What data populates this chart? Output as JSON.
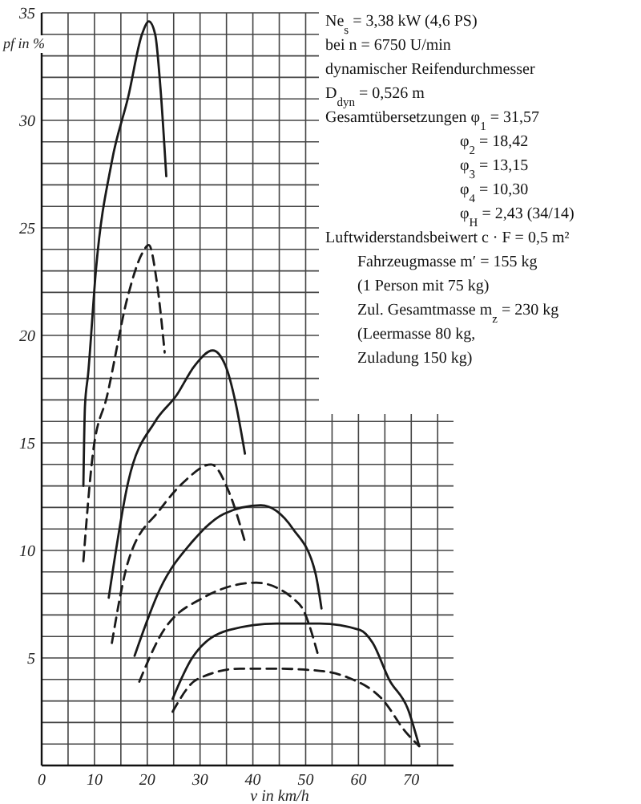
{
  "chart_data": {
    "type": "line",
    "xlabel": "v in km/h",
    "ylabel": "pf in %",
    "xlim": [
      0,
      78
    ],
    "ylim": [
      0,
      35
    ],
    "xticks": [
      0,
      {
        "value": 5,
        "label": null
      },
      10,
      {
        "value": 15,
        "label": null
      },
      20,
      {
        "value": 25,
        "label": null
      },
      30,
      {
        "value": 35,
        "label": null
      },
      40,
      {
        "value": 45,
        "label": null
      },
      50,
      {
        "value": 55,
        "label": null
      },
      60,
      {
        "value": 65,
        "label": null
      },
      70,
      {
        "value": 75,
        "label": null
      }
    ],
    "yticks": [
      {
        "value": 1,
        "label": null
      },
      {
        "value": 2,
        "label": null
      },
      {
        "value": 3,
        "label": null
      },
      {
        "value": 4,
        "label": null
      },
      5,
      {
        "value": 6,
        "label": null
      },
      {
        "value": 7,
        "label": null
      },
      {
        "value": 8,
        "label": null
      },
      {
        "value": 9,
        "label": null
      },
      10,
      {
        "value": 11,
        "label": null
      },
      {
        "value": 12,
        "label": null
      },
      {
        "value": 13,
        "label": null
      },
      {
        "value": 14,
        "label": null
      },
      15,
      {
        "value": 16,
        "label": null
      },
      {
        "value": 17,
        "label": null
      },
      {
        "value": 18,
        "label": null
      },
      {
        "value": 19,
        "label": null
      },
      20,
      {
        "value": 21,
        "label": null
      },
      {
        "value": 22,
        "label": null
      },
      {
        "value": 23,
        "label": null
      },
      {
        "value": 24,
        "label": null
      },
      25,
      {
        "value": 26,
        "label": null
      },
      {
        "value": 27,
        "label": null
      },
      {
        "value": 28,
        "label": null
      },
      {
        "value": 29,
        "label": null
      },
      30,
      {
        "value": 31,
        "label": null
      },
      {
        "value": 32,
        "label": null
      },
      {
        "value": 33,
        "label": null
      },
      {
        "value": 34,
        "label": null
      },
      35
    ],
    "grid": true,
    "marker": "none",
    "series": [
      {
        "color": "#1a1a1a",
        "line_style": "solid",
        "x": [
          7.9,
          8.2,
          8.8,
          10.3,
          13.3,
          16.4,
          19,
          20.3,
          21.5,
          22.5,
          23.6
        ],
        "values": [
          13.0,
          16.7,
          18.2,
          23.1,
          28.1,
          31.1,
          34,
          34.6,
          34,
          31.5,
          27.4
        ]
      },
      {
        "color": "#1a1a1a",
        "line_style": "dashed",
        "x": [
          7.9,
          9.7,
          12.4,
          16.4,
          19,
          20.3,
          21.8,
          23.3
        ],
        "values": [
          9.5,
          14.5,
          17.2,
          21.9,
          23.8,
          24.2,
          22.5,
          19.2
        ]
      },
      {
        "color": "#1a1a1a",
        "line_style": "solid",
        "x": [
          12.7,
          16.4,
          21.5,
          25.5,
          29,
          32.4,
          34.8,
          36.7,
          38.5
        ],
        "values": [
          7.8,
          13.2,
          16.0,
          17.2,
          18.6,
          19.3,
          18.6,
          16.9,
          14.5
        ]
      },
      {
        "color": "#1a1a1a",
        "line_style": "dashed",
        "x": [
          13.3,
          16.4,
          22.4,
          27,
          32.1,
          35.5,
          38.5
        ],
        "values": [
          5.7,
          9.5,
          11.9,
          13.2,
          14.0,
          12.7,
          10.4
        ]
      },
      {
        "color": "#1a1a1a",
        "line_style": "solid",
        "x": [
          17.6,
          22.4,
          28.5,
          34.5,
          41.5,
          47.6,
          51.8,
          53
        ],
        "values": [
          5.1,
          8.2,
          10.4,
          11.7,
          12.1,
          11.0,
          9.0,
          7.3
        ]
      },
      {
        "color": "#1a1a1a",
        "line_style": "dashed",
        "x": [
          18.5,
          22.4,
          30.6,
          40.6,
          48.8,
          52.5
        ],
        "values": [
          3.9,
          6.0,
          7.8,
          8.5,
          7.5,
          5.0
        ]
      },
      {
        "color": "#1a1a1a",
        "line_style": "solid",
        "x": [
          24.8,
          28.5,
          35.5,
          44.5,
          52.7,
          60.3,
          62.7,
          65.8,
          69.4,
          71.5
        ],
        "values": [
          3.1,
          5.0,
          6.3,
          6.6,
          6.6,
          6.3,
          5.7,
          4.0,
          2.6,
          0.9
        ]
      },
      {
        "color": "#1a1a1a",
        "line_style": "dashed",
        "x": [
          24.8,
          29.4,
          37.6,
          44.5,
          52.7,
          57.9,
          64.8,
          68.8,
          71.5
        ],
        "values": [
          2.5,
          4.0,
          4.5,
          4.5,
          4.4,
          4.1,
          3.0,
          1.6,
          0.9
        ]
      }
    ],
    "annotations": [
      "Ne$_{s}$ = 3,38 kW (4,6 PS)",
      "bei n = 6750 U/min",
      "dynamischer Reifendurchmesser",
      "D$_{dyn}$ = 0,526 m",
      "Gesamtübersetzungen φ$_{1}$ = 31,57",
      "φ$_{2}$ = 18,42",
      "φ$_{3}$ = 13,15",
      "φ$_{4}$ = 10,30",
      "φ$_{H}$ = 2,43 (34/14)",
      "Luftwiderstandsbeiwert c · F = 0,5 m²",
      "Fahrzeugmasse m′ = 155 kg",
      "(1 Person mit 75 kg)",
      "Zul. Gesamtmasse m$_{z}$ = 230 kg",
      "(Leermasse 80 kg,",
      "Zuladung 150 kg)"
    ]
  }
}
